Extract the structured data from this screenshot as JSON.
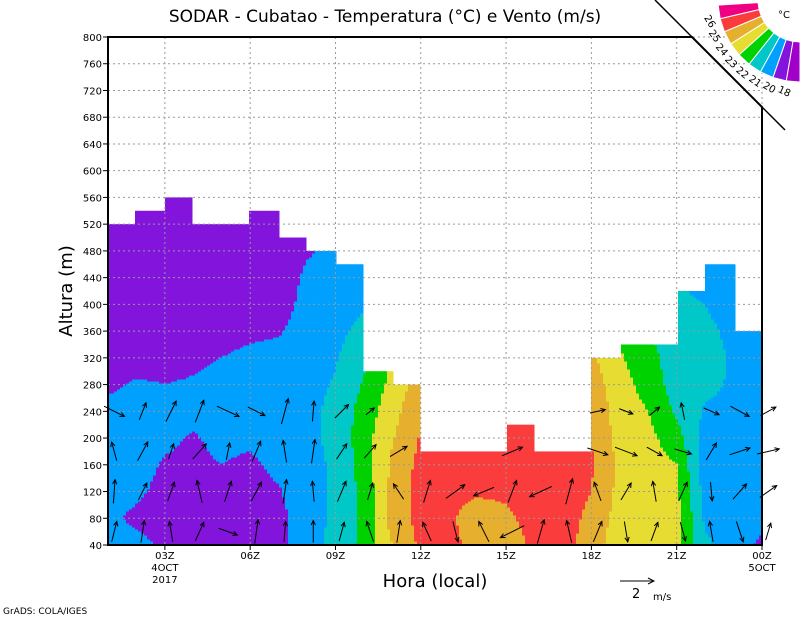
{
  "chart_data": {
    "type": "heatmap",
    "title": "SODAR - Cubatao - Temperatura (°C) e Vento (m/s)",
    "xlabel": "Hora (local)",
    "ylabel": "Altura (m)",
    "footer": "GrADS: COLA/IGES",
    "ylim": [
      40,
      800
    ],
    "yticks": [
      40,
      80,
      120,
      160,
      200,
      240,
      280,
      320,
      360,
      400,
      440,
      480,
      520,
      560,
      600,
      640,
      680,
      720,
      760,
      800
    ],
    "xlim_hours": [
      1,
      24
    ],
    "xticks": [
      {
        "hour": 3,
        "label": "03Z",
        "sub1": "4OCT",
        "sub2": "2017"
      },
      {
        "hour": 6,
        "label": "06Z"
      },
      {
        "hour": 9,
        "label": "09Z"
      },
      {
        "hour": 12,
        "label": "12Z"
      },
      {
        "hour": 15,
        "label": "15Z"
      },
      {
        "hour": 18,
        "label": "18Z"
      },
      {
        "hour": 21,
        "label": "21Z"
      },
      {
        "hour": 24,
        "label": "00Z",
        "sub1": "5OCT"
      }
    ],
    "grid": true,
    "colorbar": {
      "unit": "°C",
      "labels": [
        "26",
        "25",
        "24",
        "23",
        "22",
        "21",
        "20",
        "18"
      ],
      "colors": [
        "#f00082",
        "#fa3c3c",
        "#e6af2d",
        "#e6dc32",
        "#00d200",
        "#00c8c8",
        "#00a0ff",
        "#8214dc",
        "#a000c8"
      ]
    },
    "levels": [
      20,
      21,
      22,
      23,
      24,
      25,
      26
    ],
    "level_colors": [
      "#8214dc",
      "#00a0ff",
      "#00c8c8",
      "#00d200",
      "#e6dc32",
      "#e6af2d",
      "#fa3c3c",
      "#f00082"
    ],
    "heights": [
      40,
      80,
      120,
      160,
      200,
      240,
      280,
      320,
      360,
      400,
      440,
      480,
      520,
      560
    ],
    "hours": [
      1,
      2,
      3,
      4,
      5,
      6,
      7,
      8,
      9,
      10,
      11,
      12,
      13,
      14,
      15,
      16,
      17,
      18,
      19,
      20,
      21,
      22,
      23,
      24
    ],
    "column_top": [
      520,
      540,
      560,
      520,
      520,
      540,
      500,
      480,
      460,
      300,
      280,
      180,
      180,
      180,
      220,
      180,
      180,
      320,
      340,
      340,
      420,
      460,
      360
    ],
    "temperature": [
      [
        20.4,
        20.2,
        20.4,
        20.5,
        20.5,
        20.3,
        19.8,
        19.5,
        19.4,
        19.4,
        19.3,
        19.3,
        19.3,
        19.3
      ],
      [
        20.3,
        19.8,
        20.2,
        20.4,
        20.5,
        20.4,
        20.1,
        19.6,
        19.5,
        19.4,
        19.3,
        19.3,
        19.3,
        19.3
      ],
      [
        19.8,
        19.5,
        19.7,
        19.9,
        20.2,
        20.4,
        20.0,
        19.6,
        19.5,
        19.4,
        19.3,
        19.3,
        19.3,
        19.3
      ],
      [
        19.6,
        19.5,
        19.6,
        19.8,
        19.9,
        20.3,
        20.1,
        19.8,
        19.5,
        19.4,
        19.3,
        19.3,
        19.3,
        19.3
      ],
      [
        19.6,
        19.6,
        19.7,
        20.0,
        20.3,
        20.5,
        20.3,
        20.0,
        19.7,
        19.5,
        19.4,
        19.3,
        19.3,
        19.3
      ],
      [
        19.6,
        19.5,
        19.6,
        19.8,
        20.2,
        20.5,
        20.4,
        20.2,
        19.8,
        19.5,
        19.4,
        19.3,
        19.3,
        19.3
      ],
      [
        19.8,
        19.7,
        19.9,
        20.3,
        20.6,
        20.6,
        20.5,
        20.3,
        19.9,
        19.6,
        19.4,
        19.3,
        19.3,
        19.3
      ],
      [
        20.5,
        20.6,
        20.7,
        20.8,
        20.8,
        20.7,
        20.6,
        20.5,
        20.4,
        20.3,
        20.2,
        19.9,
        19.5,
        19.3
      ],
      [
        21.3,
        21.2,
        21.1,
        21.1,
        21.2,
        21.3,
        21.1,
        20.9,
        20.7,
        20.5,
        20.3,
        20.2,
        20.1,
        20.0
      ],
      [
        22.3,
        22.2,
        22.3,
        22.5,
        22.6,
        22.4,
        22.1,
        21.8,
        21.3,
        20.9,
        20.6,
        20.4,
        20.2,
        20.0
      ],
      [
        24.0,
        24.5,
        24.3,
        24.2,
        23.9,
        23.6,
        23.3,
        23.0,
        22.5,
        22.0,
        21.5,
        21.0,
        20.5,
        20.0
      ],
      [
        25.2,
        25.3,
        25.4,
        25.3,
        25.1,
        24.9,
        24.5,
        24.0,
        23.5,
        23.0,
        22.0,
        21.0,
        20.5,
        20.0
      ],
      [
        25.3,
        25.2,
        25.3,
        25.5,
        25.6,
        25.4,
        25.0,
        24.5,
        24.0,
        23.0,
        22.0,
        21.0,
        20.5,
        20.0
      ],
      [
        24.6,
        24.4,
        25.2,
        25.3,
        25.3,
        25.2,
        25.0,
        24.5,
        24.0,
        23.0,
        22.0,
        21.0,
        20.5,
        20.0
      ],
      [
        24.3,
        24.8,
        25.2,
        25.3,
        25.2,
        25.0,
        24.8,
        24.5,
        24.0,
        23.0,
        22.0,
        21.0,
        20.5,
        20.0
      ],
      [
        25.3,
        25.4,
        25.5,
        25.4,
        25.3,
        25.2,
        25.0,
        24.5,
        24.0,
        23.0,
        22.0,
        21.0,
        20.5,
        20.0
      ],
      [
        25.4,
        25.5,
        25.6,
        25.5,
        25.4,
        25.3,
        25.0,
        24.5,
        24.0,
        23.0,
        22.0,
        21.0,
        20.5,
        20.0
      ],
      [
        24.5,
        24.7,
        25.0,
        25.1,
        25.0,
        24.8,
        24.5,
        24.2,
        23.8,
        23.0,
        22.0,
        21.0,
        20.5,
        20.0
      ],
      [
        23.4,
        23.6,
        23.7,
        23.8,
        23.6,
        23.5,
        23.4,
        23.1,
        22.8,
        22.3,
        21.8,
        21.0,
        20.5,
        20.0
      ],
      [
        23.5,
        23.6,
        23.5,
        23.4,
        23.3,
        23.0,
        22.6,
        22.4,
        22.0,
        21.6,
        21.3,
        21.0,
        20.5,
        20.0
      ],
      [
        23.2,
        23.4,
        23.2,
        23.0,
        22.4,
        21.8,
        21.5,
        21.4,
        21.3,
        21.2,
        21.1,
        21.0,
        20.5,
        20.0
      ],
      [
        21.2,
        20.8,
        20.6,
        20.5,
        20.6,
        20.9,
        21.2,
        21.3,
        21.2,
        21.0,
        20.5,
        20.3,
        20.1,
        20.0
      ],
      [
        20.5,
        20.4,
        20.6,
        20.6,
        20.8,
        20.8,
        20.9,
        20.9,
        20.8,
        20.5,
        20.4,
        20.3,
        20.1,
        20.0
      ],
      [
        19.8,
        20.3,
        20.6,
        20.6,
        20.6,
        20.6,
        20.6,
        20.6,
        20.4,
        20.3,
        20.1,
        19.9,
        19.8,
        19.7
      ]
    ],
    "wind_heights": [
      60,
      120,
      180,
      240
    ],
    "wind_uv": [
      [
        [
          0.3,
          1.2
        ],
        [
          0.1,
          1.4
        ],
        [
          -0.3,
          1.1
        ],
        [
          1.2,
          -0.6
        ]
      ],
      [
        [
          0.2,
          1.3
        ],
        [
          0.5,
          1.0
        ],
        [
          0.6,
          1.1
        ],
        [
          0.4,
          1.0
        ]
      ],
      [
        [
          -0.2,
          1.2
        ],
        [
          0.4,
          1.1
        ],
        [
          0.3,
          0.9
        ],
        [
          0.6,
          1.2
        ]
      ],
      [
        [
          0.5,
          1.1
        ],
        [
          -0.3,
          1.3
        ],
        [
          0.8,
          0.9
        ],
        [
          0.5,
          1.3
        ]
      ],
      [
        [
          1.1,
          -0.4
        ],
        [
          0.4,
          1.2
        ],
        [
          0.2,
          1.0
        ],
        [
          1.3,
          -0.6
        ]
      ],
      [
        [
          0.2,
          1.4
        ],
        [
          0.6,
          1.1
        ],
        [
          0.5,
          1.2
        ],
        [
          1.0,
          -0.5
        ]
      ],
      [
        [
          0.1,
          1.2
        ],
        [
          0.2,
          1.4
        ],
        [
          -0.2,
          1.3
        ],
        [
          0.4,
          1.5
        ]
      ],
      [
        [
          0.0,
          1.3
        ],
        [
          -0.1,
          1.2
        ],
        [
          0.2,
          1.4
        ],
        [
          0.1,
          1.2
        ]
      ],
      [
        [
          0.3,
          1.1
        ],
        [
          0.5,
          1.2
        ],
        [
          0.6,
          0.9
        ],
        [
          0.8,
          0.8
        ]
      ],
      [
        [
          -0.4,
          1.2
        ],
        [
          0.3,
          1.0
        ],
        [
          0.7,
          0.8
        ],
        [
          0.5,
          0.4
        ]
      ],
      [
        [
          0.2,
          1.3
        ],
        [
          -0.6,
          0.9
        ],
        [
          1.0,
          0.6
        ],
        [
          0.0,
          0.0
        ]
      ],
      [
        [
          -0.5,
          1.1
        ],
        [
          0.4,
          1.3
        ],
        [
          -0.9,
          0.6
        ],
        [
          0.0,
          0.0
        ]
      ],
      [
        [
          0.3,
          -1.2
        ],
        [
          1.1,
          0.8
        ],
        [
          -0.8,
          0.5
        ],
        [
          0.0,
          0.0
        ]
      ],
      [
        [
          -0.6,
          1.2
        ],
        [
          -1.2,
          -0.5
        ],
        [
          0.2,
          1.1
        ],
        [
          0.0,
          0.0
        ]
      ],
      [
        [
          -1.4,
          -0.7
        ],
        [
          0.5,
          1.3
        ],
        [
          1.2,
          0.5
        ],
        [
          0.0,
          0.0
        ]
      ],
      [
        [
          0.4,
          1.4
        ],
        [
          -1.3,
          -0.6
        ],
        [
          0.6,
          1.2
        ],
        [
          0.0,
          0.0
        ]
      ],
      [
        [
          -0.3,
          1.3
        ],
        [
          0.4,
          1.5
        ],
        [
          -0.5,
          0.9
        ],
        [
          0.0,
          0.0
        ]
      ],
      [
        [
          0.5,
          1.2
        ],
        [
          -0.4,
          1.1
        ],
        [
          1.2,
          -0.4
        ],
        [
          0.9,
          0.2
        ]
      ],
      [
        [
          0.2,
          -1.2
        ],
        [
          0.6,
          1.0
        ],
        [
          1.3,
          -0.5
        ],
        [
          0.8,
          -0.3
        ]
      ],
      [
        [
          0.4,
          1.1
        ],
        [
          -0.2,
          1.2
        ],
        [
          0.9,
          -0.5
        ],
        [
          0.6,
          0.5
        ]
      ],
      [
        [
          0.3,
          -1.1
        ],
        [
          0.5,
          1.1
        ],
        [
          1.0,
          -0.3
        ],
        [
          -0.2,
          1.0
        ]
      ],
      [
        [
          -0.2,
          1.2
        ],
        [
          0.1,
          -1.1
        ],
        [
          0.6,
          1.0
        ],
        [
          0.9,
          -0.4
        ]
      ],
      [
        [
          0.4,
          -1.2
        ],
        [
          0.8,
          0.9
        ],
        [
          1.2,
          0.4
        ],
        [
          1.1,
          -0.6
        ]
      ],
      [
        [
          0.3,
          1.0
        ],
        [
          1.0,
          0.7
        ],
        [
          1.3,
          0.3
        ],
        [
          0.9,
          0.5
        ]
      ]
    ],
    "wind_reference": {
      "value": 2,
      "label": "2",
      "unit": "m/s"
    }
  }
}
